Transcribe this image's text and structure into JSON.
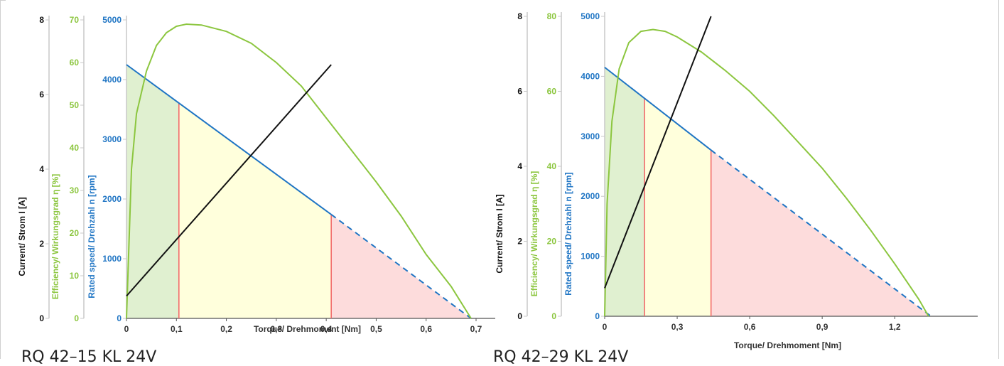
{
  "colors": {
    "current": "#111111",
    "efficiency": "#8cc63f",
    "speed": "#1f75c4",
    "boundary": "#f26b6b",
    "zone_green": "#e0f0d0",
    "zone_yellow": "#ffffdc",
    "zone_red": "#fddcdc",
    "axis_line": "#c8c8c8"
  },
  "captions": [
    "RQ 42–15 KL 24V",
    "RQ 42–29 KL 24V"
  ],
  "chart_data": [
    {
      "type": "line",
      "xlabel": "Torque/ Drehmoment [Nm]",
      "xlim": [
        0,
        0.7
      ],
      "xticks": [
        "0",
        "0,1",
        "0,2",
        "0,3",
        "0,4",
        "0,5",
        "0,6",
        "0,7"
      ],
      "grid": true,
      "y_axes": [
        {
          "key": "current",
          "label": "Current/ Strom I [A]",
          "ylim": [
            0,
            8
          ],
          "ticks": [
            "0",
            "2",
            "4",
            "6",
            "8"
          ]
        },
        {
          "key": "efficiency",
          "label": "Efficiency/ Wirkungsgrad η [%]",
          "ylim": [
            0,
            70
          ],
          "ticks": [
            "0",
            "10",
            "20",
            "30",
            "40",
            "50",
            "60",
            "70"
          ]
        },
        {
          "key": "speed",
          "label": "Rated speed/ Drehzahl n [rpm]",
          "ylim": [
            0,
            5000
          ],
          "ticks": [
            "0",
            "1000",
            "2000",
            "3000",
            "4000",
            "5000"
          ]
        }
      ],
      "series": [
        {
          "key": "current",
          "x": [
            0,
            0.41
          ],
          "y": [
            0.6,
            6.8
          ]
        },
        {
          "key": "speed",
          "x": [
            0,
            0.41
          ],
          "y": [
            4250,
            1740
          ],
          "dashed_to": {
            "x": 0.69,
            "y": 0
          }
        },
        {
          "key": "efficiency",
          "x": [
            0,
            0.01,
            0.02,
            0.04,
            0.06,
            0.08,
            0.1,
            0.12,
            0.15,
            0.2,
            0.25,
            0.3,
            0.35,
            0.4,
            0.45,
            0.5,
            0.55,
            0.6,
            0.65,
            0.69
          ],
          "y": [
            0,
            35,
            48,
            58,
            64,
            67,
            68.5,
            69,
            68.8,
            67.3,
            64.5,
            60,
            54.5,
            47,
            39.5,
            32,
            24,
            15,
            7.5,
            0
          ]
        }
      ],
      "zones": [
        0,
        0.105,
        0.41,
        0.69
      ]
    },
    {
      "type": "line",
      "xlabel": "Torque/ Drehmoment [Nm]",
      "xlim": [
        0,
        1.32
      ],
      "xticks": [
        "0",
        "0,3",
        "0,6",
        "0,9",
        "1,2"
      ],
      "grid": true,
      "y_axes": [
        {
          "key": "current",
          "label": "Current/ Strom I [A]",
          "ylim": [
            0,
            8
          ],
          "ticks": [
            "0",
            "2",
            "4",
            "6",
            "8"
          ]
        },
        {
          "key": "efficiency",
          "label": "Efficiency/ Wirkungsgrad η [%]",
          "ylim": [
            0,
            80
          ],
          "ticks": [
            "0",
            "20",
            "40",
            "60",
            "80"
          ]
        },
        {
          "key": "speed",
          "label": "Rated speed/ Drehzahl n [rpm]",
          "ylim": [
            0,
            5000
          ],
          "ticks": [
            "0",
            "1000",
            "2000",
            "3000",
            "4000",
            "5000"
          ]
        }
      ],
      "series": [
        {
          "key": "current",
          "x": [
            0,
            0.44
          ],
          "y": [
            0.75,
            8
          ]
        },
        {
          "key": "speed",
          "x": [
            0,
            0.44
          ],
          "y": [
            4150,
            2770
          ],
          "dashed_to": {
            "x": 1.35,
            "y": 0
          }
        },
        {
          "key": "efficiency",
          "x": [
            0,
            0.01,
            0.03,
            0.06,
            0.1,
            0.15,
            0.2,
            0.25,
            0.3,
            0.4,
            0.5,
            0.6,
            0.7,
            0.8,
            0.9,
            1.0,
            1.1,
            1.2,
            1.3,
            1.34
          ],
          "y": [
            0,
            30,
            52,
            66,
            73,
            76,
            76.5,
            76,
            74.5,
            70.5,
            65.5,
            60,
            53.5,
            46.5,
            39.5,
            31.5,
            23,
            14,
            4.5,
            0
          ]
        }
      ],
      "zones": [
        0,
        0.165,
        0.44,
        1.35
      ]
    }
  ]
}
